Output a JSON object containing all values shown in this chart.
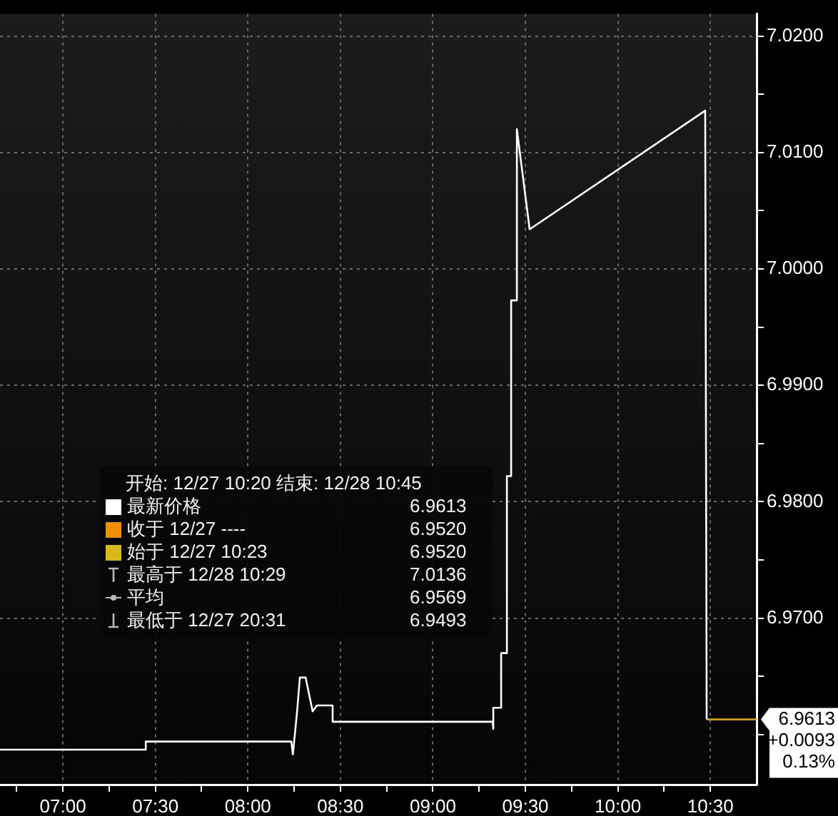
{
  "chart_data": {
    "type": "line",
    "series": [
      {
        "color": "#ffffff",
        "x": [
          6.66,
          7.448,
          7.448,
          8.127,
          8.235,
          8.243,
          8.25,
          8.265,
          8.281,
          8.312,
          8.35,
          8.373,
          8.458,
          8.458,
          9.323,
          9.323,
          9.33,
          9.369,
          9.369,
          9.4,
          9.4,
          9.423,
          9.423,
          9.454,
          9.454,
          9.523,
          10.472,
          10.48
        ],
        "values": [
          6.9587,
          6.9587,
          6.9594,
          6.9594,
          6.9594,
          6.9583,
          6.9594,
          6.9618,
          6.9649,
          6.9649,
          6.962,
          6.9625,
          6.9625,
          6.9611,
          6.9611,
          6.9605,
          6.9623,
          6.9623,
          6.967,
          6.967,
          6.9822,
          6.9822,
          6.9973,
          6.9973,
          7.012,
          7.0034,
          7.0136,
          6.9613
        ]
      },
      {
        "color": "#c8a020",
        "x": [
          10.48,
          10.75
        ],
        "values": [
          6.9613,
          6.9613
        ]
      }
    ],
    "xlim": [
      6.66,
      10.75
    ],
    "xticks": [
      {
        "value": 6.75,
        "label": null
      },
      {
        "value": 7,
        "label": "07:00"
      },
      {
        "value": 7.25,
        "label": null
      },
      {
        "value": 7.5,
        "label": "07:30"
      },
      {
        "value": 7.75,
        "label": null
      },
      {
        "value": 8,
        "label": "08:00"
      },
      {
        "value": 8.25,
        "label": null
      },
      {
        "value": 8.5,
        "label": "08:30"
      },
      {
        "value": 8.75,
        "label": null
      },
      {
        "value": 9,
        "label": "09:00"
      },
      {
        "value": 9.25,
        "label": null
      },
      {
        "value": 9.5,
        "label": "09:30"
      },
      {
        "value": 9.75,
        "label": null
      },
      {
        "value": 10,
        "label": "10:00"
      },
      {
        "value": 10.25,
        "label": null
      },
      {
        "value": 10.5,
        "label": "10:30"
      }
    ],
    "ylim": [
      6.9557,
      7.0219
    ],
    "yticks": [
      {
        "value": 6.96,
        "label": null
      },
      {
        "value": 6.965,
        "label": null
      },
      {
        "value": 6.97,
        "label": "6.9700"
      },
      {
        "value": 6.975,
        "label": null
      },
      {
        "value": 6.98,
        "label": "6.9800"
      },
      {
        "value": 6.985,
        "label": null
      },
      {
        "value": 6.99,
        "label": "6.9900"
      },
      {
        "value": 6.995,
        "label": null
      },
      {
        "value": 7,
        "label": "7.0000"
      },
      {
        "value": 7.005,
        "label": null
      },
      {
        "value": 7.01,
        "label": "7.0100"
      },
      {
        "value": 7.015,
        "label": null
      },
      {
        "value": 7.02,
        "label": "7.0200"
      }
    ],
    "grid": true,
    "legend": false,
    "marker": "none",
    "line_style": "solid",
    "annotations": [
      "开始: 12/27 10:20 结束: 12/28 10:45",
      "最新价格 6.9613",
      "收于 12/27 ---- 6.9520",
      "始于 12/27 10:23 6.9520",
      "最高于 12/28 10:29 7.0136",
      "平均 6.9569",
      "最低于 12/27 20:31 6.9493",
      "6.9613",
      "+0.0093",
      "0.13%"
    ]
  }
}
